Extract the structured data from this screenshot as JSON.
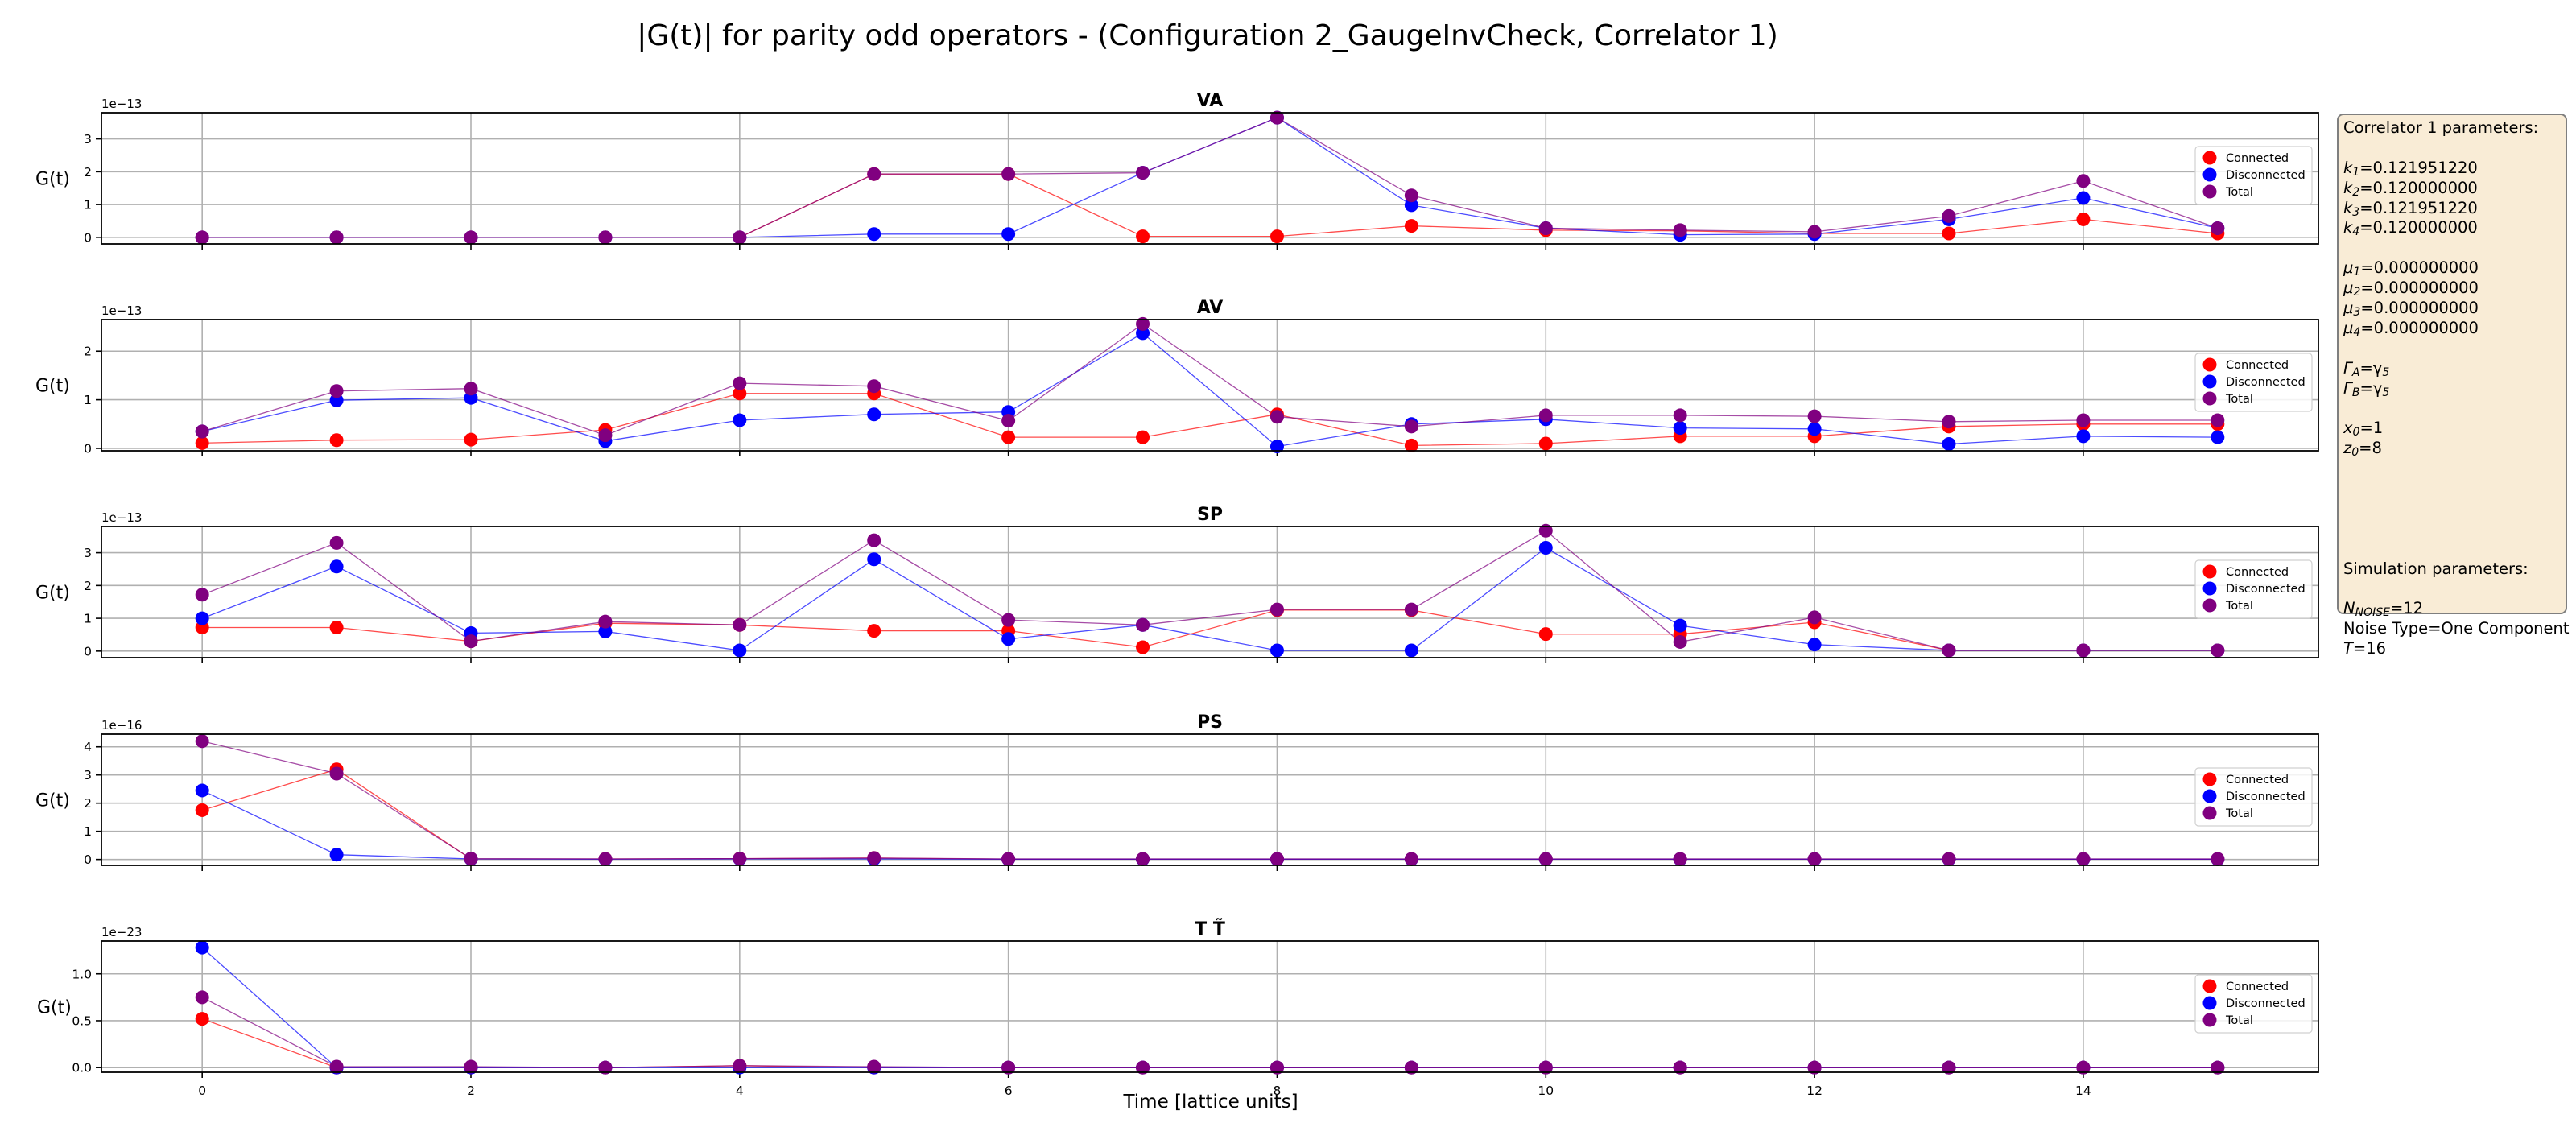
{
  "figure": {
    "title": "|G(t)| for parity odd operators - (Configuration 2_GaugeInvCheck, Correlator 1)",
    "xlabel": "Time [lattice units]",
    "colors": {
      "connected": "#ff0000",
      "disconnected": "#0000ff",
      "total": "#800080"
    }
  },
  "chart_data": [
    {
      "type": "line",
      "title": "VA",
      "ylabel": "G(t)",
      "exponent_label": "1e−13",
      "ylim": [
        -0.2,
        3.8
      ],
      "yticks": [
        0,
        1,
        2,
        3
      ],
      "ytick_labels": [
        "0",
        "1",
        "2",
        "3"
      ],
      "xlim": [
        -0.75,
        15.75
      ],
      "xticks": [
        0,
        2,
        4,
        6,
        8,
        10,
        12,
        14
      ],
      "show_xtick_labels": false,
      "grid": true,
      "legend": "center-right",
      "x": [
        0,
        1,
        2,
        3,
        4,
        5,
        6,
        7,
        8,
        9,
        10,
        11,
        12,
        13,
        14,
        15
      ],
      "series": [
        {
          "name": "Connected",
          "color": "#ff0000",
          "values": [
            0.0,
            0.0,
            0.0,
            0.0,
            0.0,
            1.93,
            1.93,
            0.03,
            0.03,
            0.35,
            0.22,
            0.2,
            0.12,
            0.12,
            0.55,
            0.12
          ]
        },
        {
          "name": "Disconnected",
          "color": "#0000ff",
          "values": [
            0.0,
            0.0,
            0.0,
            0.0,
            0.0,
            0.1,
            0.1,
            1.97,
            3.65,
            0.98,
            0.28,
            0.08,
            0.1,
            0.55,
            1.2,
            0.28
          ]
        },
        {
          "name": "Total",
          "color": "#800080",
          "values": [
            0.0,
            0.0,
            0.0,
            0.0,
            0.0,
            1.93,
            1.93,
            1.97,
            3.65,
            1.28,
            0.28,
            0.22,
            0.17,
            0.65,
            1.72,
            0.28
          ]
        }
      ]
    },
    {
      "type": "line",
      "title": "AV",
      "ylabel": "G(t)",
      "exponent_label": "1e−13",
      "ylim": [
        -0.05,
        2.65
      ],
      "yticks": [
        0,
        1,
        2
      ],
      "ytick_labels": [
        "0",
        "1",
        "2"
      ],
      "xlim": [
        -0.75,
        15.75
      ],
      "xticks": [
        0,
        2,
        4,
        6,
        8,
        10,
        12,
        14
      ],
      "show_xtick_labels": false,
      "grid": true,
      "legend": "center-right",
      "x": [
        0,
        1,
        2,
        3,
        4,
        5,
        6,
        7,
        8,
        9,
        10,
        11,
        12,
        13,
        14,
        15
      ],
      "series": [
        {
          "name": "Connected",
          "color": "#ff0000",
          "values": [
            0.11,
            0.17,
            0.18,
            0.38,
            1.13,
            1.13,
            0.23,
            0.23,
            0.7,
            0.06,
            0.1,
            0.25,
            0.25,
            0.45,
            0.5,
            0.5
          ]
        },
        {
          "name": "Disconnected",
          "color": "#0000ff",
          "values": [
            0.35,
            0.99,
            1.04,
            0.15,
            0.58,
            0.7,
            0.75,
            2.37,
            0.04,
            0.5,
            0.6,
            0.42,
            0.4,
            0.09,
            0.25,
            0.23
          ]
        },
        {
          "name": "Total",
          "color": "#800080",
          "values": [
            0.35,
            1.18,
            1.23,
            0.27,
            1.34,
            1.28,
            0.57,
            2.56,
            0.65,
            0.45,
            0.68,
            0.68,
            0.66,
            0.55,
            0.58,
            0.58
          ]
        }
      ]
    },
    {
      "type": "line",
      "title": "SP",
      "ylabel": "G(t)",
      "exponent_label": "1e−13",
      "ylim": [
        -0.2,
        3.8
      ],
      "yticks": [
        0,
        1,
        2,
        3
      ],
      "ytick_labels": [
        "0",
        "1",
        "2",
        "3"
      ],
      "xlim": [
        -0.75,
        15.75
      ],
      "xticks": [
        0,
        2,
        4,
        6,
        8,
        10,
        12,
        14
      ],
      "show_xtick_labels": false,
      "grid": true,
      "legend": "center-right",
      "x": [
        0,
        1,
        2,
        3,
        4,
        5,
        6,
        7,
        8,
        9,
        10,
        11,
        12,
        13,
        14,
        15
      ],
      "series": [
        {
          "name": "Connected",
          "color": "#ff0000",
          "values": [
            0.72,
            0.72,
            0.3,
            0.85,
            0.8,
            0.62,
            0.62,
            0.12,
            1.25,
            1.25,
            0.52,
            0.52,
            0.88,
            0.02,
            0.02,
            0.02
          ]
        },
        {
          "name": "Disconnected",
          "color": "#0000ff",
          "values": [
            1.0,
            2.58,
            0.55,
            0.6,
            0.02,
            2.8,
            0.37,
            0.8,
            0.02,
            0.02,
            3.15,
            0.78,
            0.2,
            0.02,
            0.02,
            0.02
          ]
        },
        {
          "name": "Total",
          "color": "#800080",
          "values": [
            1.72,
            3.3,
            0.3,
            0.9,
            0.8,
            3.38,
            0.95,
            0.8,
            1.27,
            1.27,
            3.67,
            0.28,
            1.03,
            0.02,
            0.02,
            0.02
          ]
        }
      ]
    },
    {
      "type": "line",
      "title": "PS",
      "ylabel": "G(t)",
      "exponent_label": "1e−16",
      "ylim": [
        -0.21,
        4.45
      ],
      "yticks": [
        0,
        1,
        2,
        3,
        4
      ],
      "ytick_labels": [
        "0",
        "1",
        "2",
        "3",
        "4"
      ],
      "xlim": [
        -0.75,
        15.75
      ],
      "xticks": [
        0,
        2,
        4,
        6,
        8,
        10,
        12,
        14
      ],
      "show_xtick_labels": false,
      "grid": true,
      "legend": "center-right",
      "x": [
        0,
        1,
        2,
        3,
        4,
        5,
        6,
        7,
        8,
        9,
        10,
        11,
        12,
        13,
        14,
        15
      ],
      "series": [
        {
          "name": "Connected",
          "color": "#ff0000",
          "values": [
            1.75,
            3.2,
            0.02,
            0.02,
            0.03,
            0.05,
            0.01,
            0.01,
            0.01,
            0.01,
            0.01,
            0.01,
            0.01,
            0.01,
            0.01,
            0.01
          ]
        },
        {
          "name": "Disconnected",
          "color": "#0000ff",
          "values": [
            2.45,
            0.17,
            0.02,
            0.01,
            0.02,
            0.02,
            0.01,
            0.01,
            0.01,
            0.01,
            0.01,
            0.01,
            0.01,
            0.01,
            0.01,
            0.01
          ]
        },
        {
          "name": "Total",
          "color": "#800080",
          "values": [
            4.2,
            3.05,
            0.03,
            0.02,
            0.03,
            0.05,
            0.02,
            0.02,
            0.02,
            0.02,
            0.02,
            0.02,
            0.02,
            0.02,
            0.02,
            0.02
          ]
        }
      ]
    },
    {
      "type": "line",
      "title": "T T̃",
      "ylabel": "G(t)",
      "exponent_label": "1e−23",
      "ylim": [
        -0.05,
        1.35
      ],
      "yticks": [
        0,
        0.5,
        1.0
      ],
      "ytick_labels": [
        "0.0",
        "0.5",
        "1.0"
      ],
      "xlim": [
        -0.75,
        15.75
      ],
      "xticks": [
        0,
        2,
        4,
        6,
        8,
        10,
        12,
        14
      ],
      "show_xtick_labels": true,
      "grid": true,
      "legend": "center-right",
      "x": [
        0,
        1,
        2,
        3,
        4,
        5,
        6,
        7,
        8,
        9,
        10,
        11,
        12,
        13,
        14,
        15
      ],
      "series": [
        {
          "name": "Connected",
          "color": "#ff0000",
          "values": [
            0.52,
            0.0,
            0.0,
            0.0,
            0.02,
            0.0,
            0.0,
            0.0,
            0.0,
            0.0,
            0.0,
            0.0,
            0.0,
            0.0,
            0.0,
            0.0
          ]
        },
        {
          "name": "Disconnected",
          "color": "#0000ff",
          "values": [
            1.28,
            0.0,
            0.0,
            0.0,
            0.0,
            0.0,
            0.0,
            0.0,
            0.0,
            0.0,
            0.0,
            0.0,
            0.0,
            0.0,
            0.0,
            0.0
          ]
        },
        {
          "name": "Total",
          "color": "#800080",
          "values": [
            0.75,
            0.01,
            0.01,
            0.0,
            0.02,
            0.01,
            0.0,
            0.0,
            0.0,
            0.0,
            0.0,
            0.0,
            0.0,
            0.0,
            0.0,
            0.0
          ]
        }
      ]
    }
  ],
  "params": {
    "corr_header": "Correlator 1 parameters:",
    "k": [
      {
        "sym": "k",
        "sub": "1",
        "val": "=0.121951220"
      },
      {
        "sym": "k",
        "sub": "2",
        "val": "=0.120000000"
      },
      {
        "sym": "k",
        "sub": "3",
        "val": "=0.121951220"
      },
      {
        "sym": "k",
        "sub": "4",
        "val": "=0.120000000"
      }
    ],
    "mu": [
      {
        "sym": "μ",
        "sub": "1",
        "val": "=0.000000000"
      },
      {
        "sym": "μ",
        "sub": "2",
        "val": "=0.000000000"
      },
      {
        "sym": "μ",
        "sub": "3",
        "val": "=0.000000000"
      },
      {
        "sym": "μ",
        "sub": "4",
        "val": "=0.000000000"
      }
    ],
    "gamma": [
      {
        "sym": "Γ",
        "sub": "A",
        "val": "=γ",
        "val_sub": "5"
      },
      {
        "sym": "Γ",
        "sub": "B",
        "val": "=γ",
        "val_sub": "5"
      }
    ],
    "pos": [
      {
        "sym": "x",
        "sub": "0",
        "val": "=1"
      },
      {
        "sym": "z",
        "sub": "0",
        "val": "=8"
      }
    ],
    "sim_header": "Simulation parameters:",
    "noise_n": {
      "sym": "N",
      "sub": "NOISE",
      "val": "=12"
    },
    "noise_type": "Noise Type=One Component",
    "T": {
      "sym": "T",
      "val": "=16"
    }
  }
}
